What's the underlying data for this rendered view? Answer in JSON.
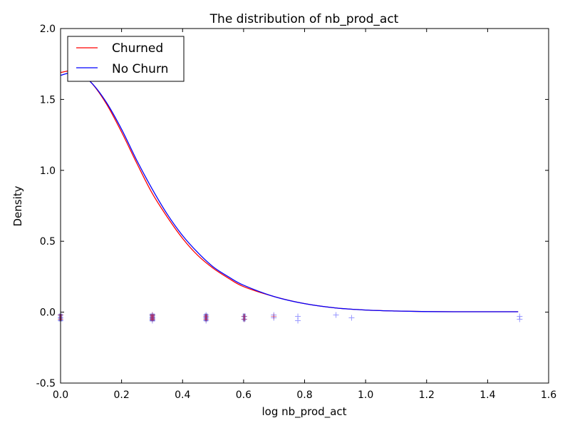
{
  "chart_data": {
    "type": "line",
    "title": "The distribution of nb_prod_act",
    "xlabel": "log nb_prod_act",
    "ylabel": "Density",
    "xlim": [
      0.0,
      1.6
    ],
    "ylim": [
      -0.5,
      2.0
    ],
    "xticks": [
      "0.0",
      "0.2",
      "0.4",
      "0.6",
      "0.8",
      "1.0",
      "1.2",
      "1.4",
      "1.6"
    ],
    "yticks": [
      "-0.5",
      "0.0",
      "0.5",
      "1.0",
      "1.5",
      "2.0"
    ],
    "grid": false,
    "legend_position": "top-left",
    "series": [
      {
        "name": "Churned",
        "color": "#ff0000",
        "x": [
          0.0,
          0.05,
          0.1,
          0.15,
          0.2,
          0.25,
          0.3,
          0.35,
          0.4,
          0.45,
          0.5,
          0.55,
          0.6,
          0.7,
          0.8,
          0.9,
          1.0,
          1.1,
          1.2,
          1.3,
          1.4,
          1.5
        ],
        "y": [
          1.69,
          1.7,
          1.62,
          1.47,
          1.27,
          1.05,
          0.84,
          0.67,
          0.52,
          0.4,
          0.31,
          0.24,
          0.18,
          0.11,
          0.06,
          0.03,
          0.015,
          0.008,
          0.004,
          0.003,
          0.003,
          0.003
        ]
      },
      {
        "name": "No Churn",
        "color": "#0000ff",
        "x": [
          0.0,
          0.05,
          0.1,
          0.15,
          0.2,
          0.25,
          0.3,
          0.35,
          0.4,
          0.45,
          0.5,
          0.55,
          0.6,
          0.7,
          0.8,
          0.9,
          1.0,
          1.1,
          1.2,
          1.3,
          1.4,
          1.5
        ],
        "y": [
          1.67,
          1.69,
          1.62,
          1.48,
          1.29,
          1.07,
          0.87,
          0.69,
          0.54,
          0.42,
          0.32,
          0.25,
          0.19,
          0.11,
          0.06,
          0.03,
          0.015,
          0.008,
          0.004,
          0.003,
          0.003,
          0.003
        ]
      }
    ],
    "rug": {
      "churned": {
        "color": "#cc2244",
        "x": [
          0.0,
          0.0,
          0.301,
          0.301,
          0.477,
          0.477,
          0.602,
          0.602,
          0.699
        ],
        "y": [
          -0.02,
          -0.05,
          -0.02,
          -0.05,
          -0.03,
          -0.05,
          -0.03,
          -0.05,
          -0.03
        ]
      },
      "no_churn": {
        "color": "#4444ff",
        "x": [
          0.0,
          0.0,
          0.0,
          0.301,
          0.301,
          0.301,
          0.477,
          0.477,
          0.477,
          0.602,
          0.602,
          0.699,
          0.699,
          0.778,
          0.778,
          0.903,
          0.954,
          1.505,
          1.505
        ],
        "y": [
          -0.02,
          -0.04,
          -0.06,
          -0.02,
          -0.04,
          -0.06,
          -0.02,
          -0.04,
          -0.06,
          -0.03,
          -0.05,
          -0.02,
          -0.04,
          -0.03,
          -0.06,
          -0.02,
          -0.04,
          -0.03,
          -0.05
        ]
      }
    }
  }
}
